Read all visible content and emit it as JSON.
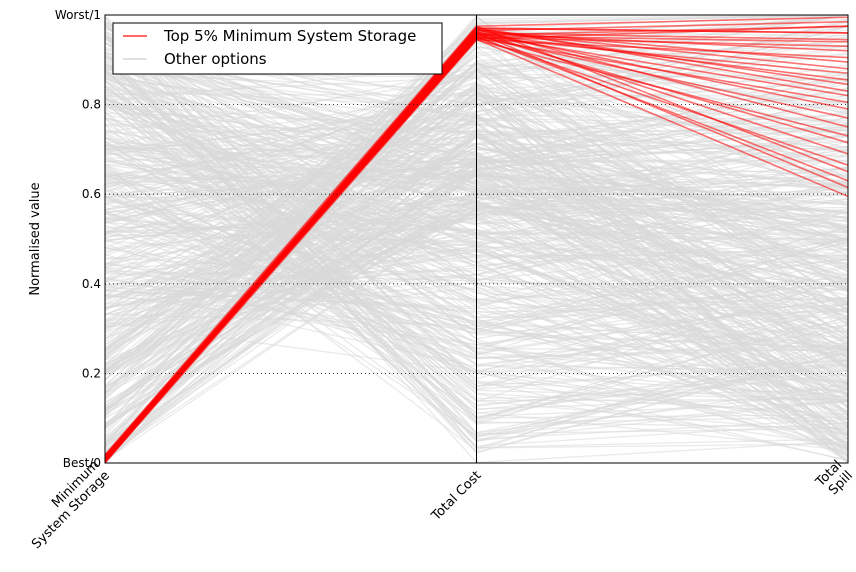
{
  "chart_data": {
    "type": "parallel-coordinates",
    "ylabel": "Normalised value",
    "ylim": [
      0,
      1
    ],
    "y_ticks": [
      {
        "value": 0,
        "label": "Best/0"
      },
      {
        "value": 0.2,
        "label": "0.2"
      },
      {
        "value": 0.4,
        "label": "0.4"
      },
      {
        "value": 0.6,
        "label": "0.6"
      },
      {
        "value": 0.8,
        "label": "0.8"
      },
      {
        "value": 1,
        "label": "Worst/1"
      }
    ],
    "axes": [
      {
        "name": "Minimum System Storage",
        "label_lines": [
          "Minimum",
          "System Storage"
        ]
      },
      {
        "name": "Total Cost",
        "label_lines": [
          "Total Cost"
        ]
      },
      {
        "name": "Total Spill",
        "label_lines": [
          "Total",
          "Spill"
        ]
      }
    ],
    "grid": "horizontal dotted",
    "legend": {
      "placement": "top-left",
      "entries": [
        {
          "label": "Top 5% Minimum System Storage",
          "color": "#ff0000"
        },
        {
          "label": "Other options",
          "color": "#d9d9d9"
        }
      ]
    },
    "series": [
      {
        "name": "Top 5% Minimum System Storage",
        "color": "#ff0000",
        "lines": [
          [
            0.0,
            0.975,
            0.995
          ],
          [
            0.003,
            0.965,
            0.985
          ],
          [
            0.006,
            0.955,
            0.975
          ],
          [
            0.01,
            0.97,
            0.96
          ],
          [
            0.012,
            0.96,
            0.945
          ],
          [
            0.004,
            0.95,
            0.93
          ],
          [
            0.008,
            0.945,
            0.905
          ],
          [
            0.014,
            0.965,
            0.88
          ],
          [
            0.002,
            0.958,
            0.855
          ],
          [
            0.016,
            0.972,
            0.83
          ],
          [
            0.005,
            0.948,
            0.805
          ],
          [
            0.011,
            0.962,
            0.79
          ],
          [
            0.007,
            0.953,
            0.77
          ],
          [
            0.013,
            0.968,
            0.75
          ],
          [
            0.001,
            0.944,
            0.73
          ],
          [
            0.009,
            0.957,
            0.715
          ],
          [
            0.015,
            0.963,
            0.69
          ],
          [
            0.003,
            0.949,
            0.665
          ],
          [
            0.018,
            0.975,
            0.65
          ],
          [
            0.006,
            0.952,
            0.63
          ],
          [
            0.01,
            0.96,
            0.615
          ],
          [
            0.012,
            0.946,
            0.595
          ],
          [
            0.004,
            0.971,
            0.96
          ],
          [
            0.008,
            0.954,
            0.94
          ],
          [
            0.017,
            0.959,
            0.92
          ],
          [
            0.002,
            0.966,
            0.895
          ],
          [
            0.014,
            0.951,
            0.87
          ],
          [
            0.009,
            0.969,
            0.845
          ],
          [
            0.006,
            0.956,
            0.82
          ],
          [
            0.011,
            0.947,
            0.975
          ]
        ]
      },
      {
        "name": "Other options",
        "color": "#d9d9d9",
        "count": 520,
        "generated": true
      }
    ]
  }
}
